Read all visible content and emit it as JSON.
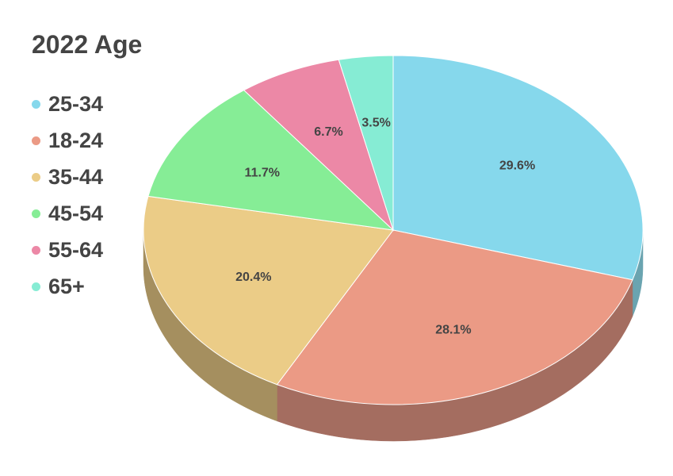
{
  "chart_data": {
    "type": "pie",
    "title": "2022 Age",
    "legend_position": "left",
    "slices": [
      {
        "label": "25-34",
        "value": 29.6,
        "display": "29.6%",
        "color": "#86d8ec",
        "side_color": "#6aa4b0"
      },
      {
        "label": "18-24",
        "value": 28.1,
        "display": "28.1%",
        "color": "#eb9a85",
        "side_color": "#a46d60"
      },
      {
        "label": "35-44",
        "value": 20.4,
        "display": "20.4%",
        "color": "#ebcc87",
        "side_color": "#a58f5f"
      },
      {
        "label": "45-54",
        "value": 11.7,
        "display": "11.7%",
        "color": "#86ed96",
        "side_color": "#5fa56a"
      },
      {
        "label": "55-64",
        "value": 6.7,
        "display": "6.7%",
        "color": "#ec88a6",
        "side_color": "#a55f75"
      },
      {
        "label": "65+",
        "value": 3.5,
        "display": "3.5%",
        "color": "#86ecd4",
        "side_color": "#5fa595"
      }
    ]
  }
}
